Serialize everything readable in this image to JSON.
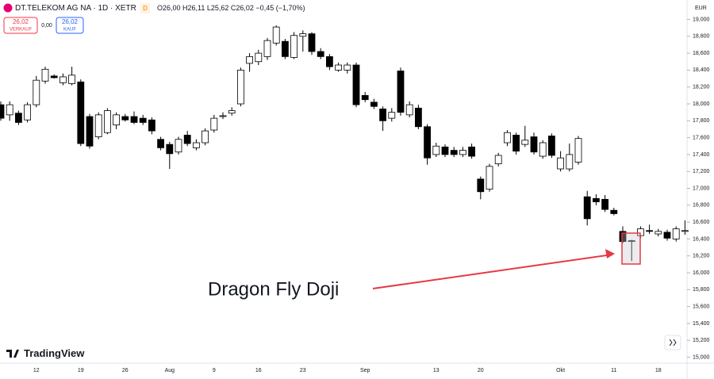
{
  "header": {
    "symbol": "DT.TELEKOM AG NA · 1D · XETR",
    "badge": "D",
    "ohlc": "O26,00 H26,11 L25,62 C26,02 −0,45 (−1,70%)",
    "sell_price": "26,02",
    "sell_label": "VERKAUF",
    "spread": "0,00",
    "buy_price": "26,02",
    "buy_label": "KAUF",
    "logo": "TradingView"
  },
  "chart_data": {
    "type": "candlestick",
    "currency": "EUR",
    "up_color": "#ffffff",
    "down_color": "#000000",
    "categories": [
      null,
      null,
      null,
      null,
      "12",
      null,
      null,
      null,
      null,
      "19",
      null,
      null,
      null,
      null,
      "26",
      null,
      null,
      null,
      null,
      "Aug",
      null,
      null,
      null,
      null,
      "9",
      null,
      null,
      null,
      null,
      "16",
      null,
      null,
      null,
      null,
      "23",
      null,
      null,
      null,
      null,
      null,
      null,
      "Sep",
      null,
      null,
      null,
      null,
      null,
      null,
      null,
      "13",
      null,
      null,
      null,
      null,
      "20",
      null,
      null,
      null,
      null,
      null,
      null,
      null,
      null,
      "Okt",
      null,
      null,
      null,
      null,
      null,
      "11",
      null,
      null,
      null,
      null,
      "18",
      null,
      null,
      null
    ],
    "open": [
      17.99,
      17.87,
      17.89,
      17.81,
      17.99,
      18.27,
      18.33,
      18.25,
      18.24,
      18.26,
      17.85,
      17.61,
      17.66,
      17.75,
      17.85,
      17.85,
      17.83,
      17.81,
      17.58,
      17.52,
      17.43,
      17.63,
      17.48,
      17.54,
      17.69,
      17.85,
      17.89,
      18.0,
      18.48,
      18.5,
      18.56,
      18.72,
      18.74,
      18.55,
      18.8,
      18.83,
      18.62,
      18.56,
      18.4,
      18.4,
      18.46,
      18.1,
      18.02,
      17.94,
      17.83,
      18.39,
      17.87,
      17.95,
      17.73,
      17.4,
      17.49,
      17.45,
      17.4,
      17.49,
      17.11,
      16.99,
      17.29,
      17.54,
      17.63,
      17.52,
      17.61,
      17.38,
      17.62,
      17.23,
      17.23,
      17.31,
      16.9,
      16.88,
      16.87,
      16.74,
      16.49,
      16.37,
      16.44,
      16.5,
      16.46,
      16.48,
      16.4,
      16.49
    ],
    "high": [
      18.03,
      18.03,
      17.92,
      18.02,
      18.33,
      18.44,
      18.35,
      18.36,
      18.44,
      18.29,
      17.88,
      17.9,
      17.95,
      17.9,
      17.88,
      17.91,
      17.87,
      17.84,
      17.61,
      17.55,
      17.61,
      17.68,
      17.58,
      17.71,
      17.87,
      17.9,
      17.96,
      18.43,
      18.6,
      18.64,
      18.78,
      18.93,
      18.77,
      18.85,
      18.87,
      18.85,
      18.66,
      18.59,
      18.49,
      18.49,
      18.49,
      18.14,
      18.06,
      17.97,
      17.95,
      18.43,
      18.03,
      17.99,
      17.76,
      17.54,
      17.52,
      17.49,
      17.49,
      17.53,
      17.14,
      17.29,
      17.42,
      17.69,
      17.66,
      17.74,
      17.66,
      17.57,
      17.65,
      17.44,
      17.53,
      17.62,
      16.97,
      16.93,
      16.92,
      16.77,
      16.55,
      16.39,
      16.55,
      16.57,
      16.52,
      16.51,
      16.55,
      16.62
    ],
    "low": [
      17.8,
      17.8,
      17.75,
      17.78,
      17.96,
      18.24,
      18.3,
      18.22,
      18.22,
      17.5,
      17.47,
      17.58,
      17.64,
      17.7,
      17.79,
      17.76,
      17.75,
      17.64,
      17.45,
      17.23,
      17.4,
      17.5,
      17.45,
      17.51,
      17.66,
      17.82,
      17.86,
      17.97,
      18.38,
      18.46,
      18.52,
      18.69,
      18.53,
      18.53,
      18.62,
      18.58,
      18.53,
      18.4,
      18.38,
      18.36,
      17.96,
      18.02,
      17.94,
      17.68,
      17.79,
      17.86,
      17.84,
      17.7,
      17.28,
      17.37,
      17.37,
      17.37,
      17.37,
      17.35,
      16.87,
      16.96,
      17.26,
      17.5,
      17.4,
      17.49,
      17.4,
      17.35,
      17.36,
      17.2,
      17.2,
      17.28,
      16.56,
      16.8,
      16.72,
      16.68,
      16.35,
      16.14,
      16.41,
      16.46,
      16.43,
      16.38,
      16.37,
      16.45
    ],
    "close": [
      17.83,
      17.99,
      17.78,
      17.99,
      18.28,
      18.41,
      18.31,
      18.32,
      18.34,
      17.53,
      17.5,
      17.87,
      17.92,
      17.87,
      17.81,
      17.78,
      17.78,
      17.68,
      17.48,
      17.41,
      17.58,
      17.53,
      17.54,
      17.68,
      17.83,
      17.86,
      17.92,
      18.4,
      18.56,
      18.6,
      18.75,
      18.91,
      18.56,
      18.81,
      18.83,
      18.62,
      18.56,
      18.44,
      18.46,
      18.46,
      17.99,
      18.05,
      17.97,
      17.8,
      17.9,
      17.9,
      17.99,
      17.73,
      17.36,
      17.5,
      17.4,
      17.4,
      17.45,
      17.38,
      16.96,
      17.26,
      17.39,
      17.66,
      17.44,
      17.57,
      17.43,
      17.54,
      17.39,
      17.36,
      17.4,
      17.59,
      16.64,
      16.84,
      16.75,
      16.7,
      16.37,
      16.38,
      16.52,
      16.49,
      16.49,
      16.41,
      16.52,
      16.5
    ],
    "ylim": [
      14.93,
      19.23
    ],
    "yticks": [
      {
        "value": 15,
        "label": "15,000"
      },
      {
        "value": 15.2,
        "label": "15,200"
      },
      {
        "value": 15.4,
        "label": "15,400"
      },
      {
        "value": 15.6,
        "label": "15,600"
      },
      {
        "value": 15.8,
        "label": "15,800"
      },
      {
        "value": 16,
        "label": "16,000"
      },
      {
        "value": 16.2,
        "label": "16,200"
      },
      {
        "value": 16.4,
        "label": "16,400"
      },
      {
        "value": 16.6,
        "label": "16,600"
      },
      {
        "value": 16.8,
        "label": "16,800"
      },
      {
        "value": 17,
        "label": "17,000"
      },
      {
        "value": 17.2,
        "label": "17,200"
      },
      {
        "value": 17.4,
        "label": "17,400"
      },
      {
        "value": 17.6,
        "label": "17,600"
      },
      {
        "value": 17.8,
        "label": "17,800"
      },
      {
        "value": 18,
        "label": "18,000"
      },
      {
        "value": 18.2,
        "label": "18,200"
      },
      {
        "value": 18.4,
        "label": "18,400"
      },
      {
        "value": 18.6,
        "label": "18,600"
      },
      {
        "value": 18.8,
        "label": "18,800"
      },
      {
        "value": 19,
        "label": "19,000"
      }
    ],
    "grid": false,
    "annotation": "Dragon Fly Doji"
  }
}
